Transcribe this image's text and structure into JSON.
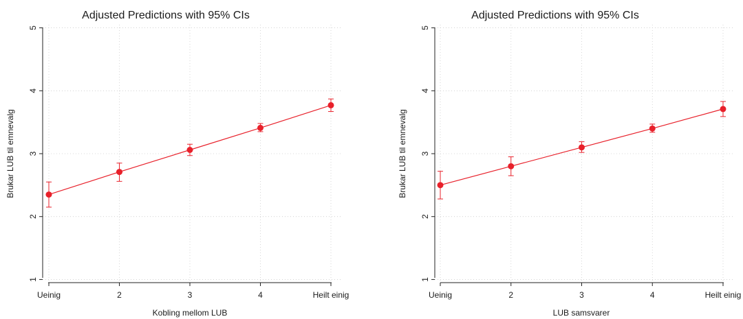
{
  "chart_data": [
    {
      "type": "line",
      "title": "Adjusted Predictions with 95% CIs",
      "xlabel": "Kobling mellom LUB",
      "ylabel": "Brukar LUB til emnevalg",
      "categories": [
        "Ueinig",
        "2",
        "3",
        "4",
        "Heilt einig"
      ],
      "ylim": [
        0.95,
        5.05
      ],
      "yticks": [
        1,
        2,
        3,
        4,
        5
      ],
      "grid": true,
      "color": "#e8202a",
      "series": [
        {
          "values": [
            2.35,
            2.71,
            3.06,
            3.41,
            3.77
          ],
          "ci_low": [
            2.15,
            2.56,
            2.97,
            3.35,
            3.67
          ],
          "ci_high": [
            2.55,
            2.85,
            3.15,
            3.48,
            3.87
          ]
        }
      ]
    },
    {
      "type": "line",
      "title": "Adjusted Predictions with 95% CIs",
      "xlabel": "LUB samsvarer",
      "ylabel": "Brukar LUB til emnevalg",
      "categories": [
        "Ueinig",
        "2",
        "3",
        "4",
        "Heilt einig"
      ],
      "ylim": [
        0.95,
        5.05
      ],
      "yticks": [
        1,
        2,
        3,
        4,
        5
      ],
      "grid": true,
      "color": "#e8202a",
      "series": [
        {
          "values": [
            2.5,
            2.8,
            3.1,
            3.4,
            3.71
          ],
          "ci_low": [
            2.28,
            2.65,
            3.02,
            3.34,
            3.59
          ],
          "ci_high": [
            2.72,
            2.95,
            3.19,
            3.47,
            3.83
          ]
        }
      ]
    }
  ]
}
